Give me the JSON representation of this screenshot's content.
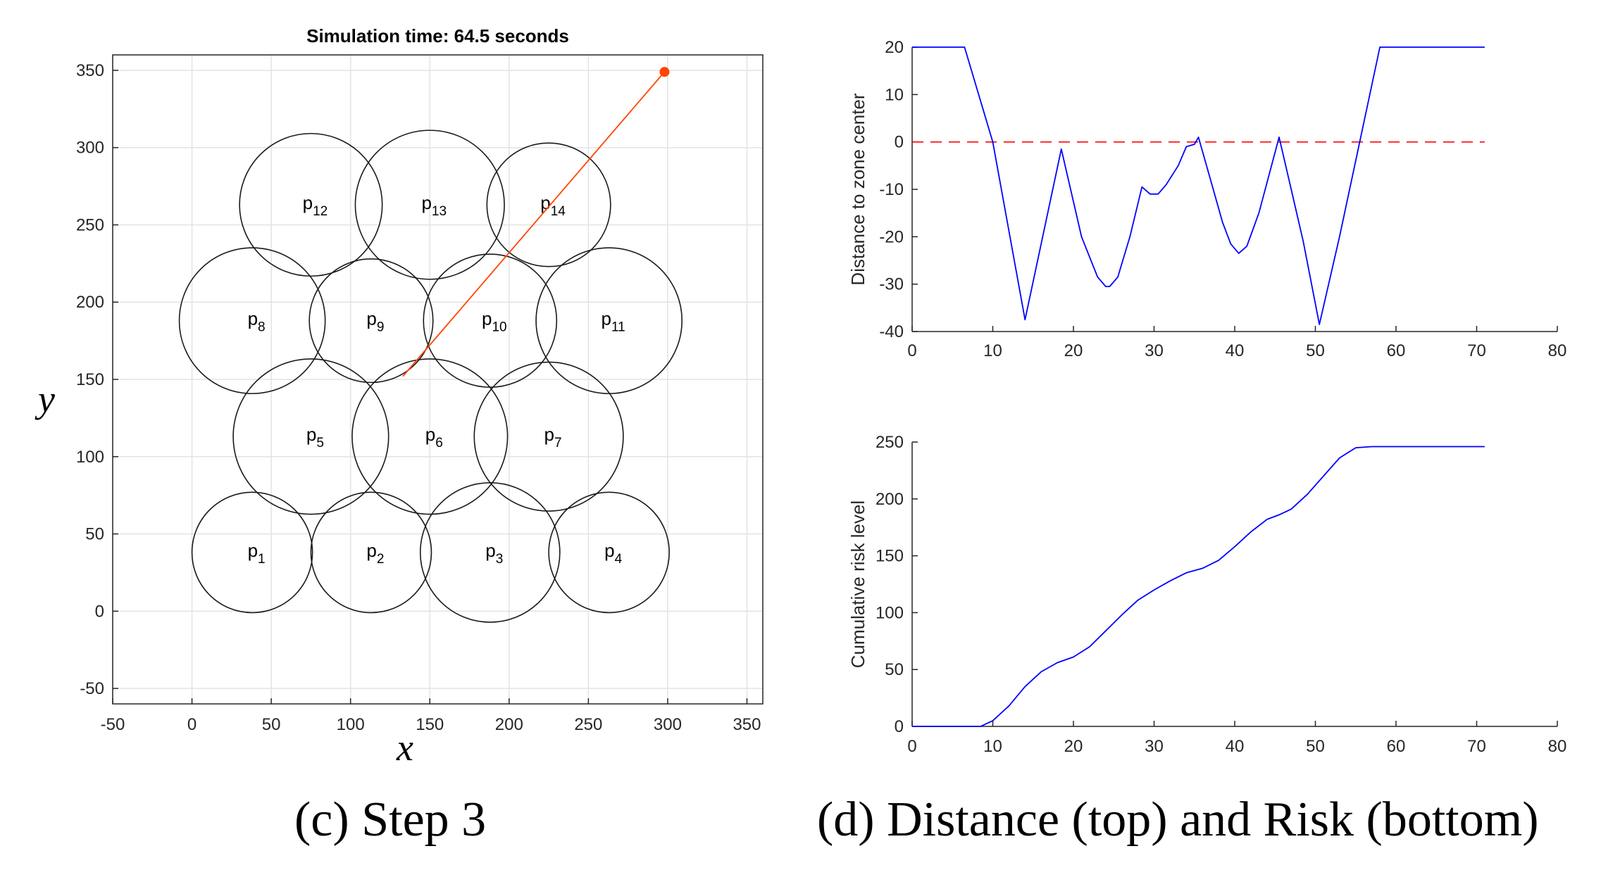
{
  "chart_data": [
    {
      "id": "left",
      "type": "scatter",
      "title": "Simulation time: 64.5 seconds",
      "xlabel": "x",
      "ylabel": "y",
      "xlim": [
        -50,
        360
      ],
      "ylim": [
        -60,
        360
      ],
      "xticks": [
        -50,
        0,
        50,
        100,
        150,
        200,
        250,
        300,
        350
      ],
      "yticks": [
        -50,
        0,
        50,
        100,
        150,
        200,
        250,
        300,
        350
      ],
      "grid": true,
      "caption": "(c) Step 3",
      "circles": [
        {
          "label": "p",
          "sub": "1",
          "cx": 38,
          "cy": 38,
          "r": 38
        },
        {
          "label": "p",
          "sub": "2",
          "cx": 113,
          "cy": 38,
          "r": 38
        },
        {
          "label": "p",
          "sub": "3",
          "cx": 188,
          "cy": 38,
          "r": 44
        },
        {
          "label": "p",
          "sub": "4",
          "cx": 263,
          "cy": 38,
          "r": 38
        },
        {
          "label": "p",
          "sub": "5",
          "cx": 75,
          "cy": 113,
          "r": 49
        },
        {
          "label": "p",
          "sub": "6",
          "cx": 150,
          "cy": 113,
          "r": 49
        },
        {
          "label": "p",
          "sub": "7",
          "cx": 225,
          "cy": 113,
          "r": 47
        },
        {
          "label": "p",
          "sub": "8",
          "cx": 38,
          "cy": 188,
          "r": 46
        },
        {
          "label": "p",
          "sub": "9",
          "cx": 113,
          "cy": 188,
          "r": 39
        },
        {
          "label": "p",
          "sub": "10",
          "cx": 188,
          "cy": 188,
          "r": 42
        },
        {
          "label": "p",
          "sub": "11",
          "cx": 263,
          "cy": 188,
          "r": 46
        },
        {
          "label": "p",
          "sub": "12",
          "cx": 75,
          "cy": 263,
          "r": 45
        },
        {
          "label": "p",
          "sub": "13",
          "cx": 150,
          "cy": 263,
          "r": 47
        },
        {
          "label": "p",
          "sub": "14",
          "cx": 225,
          "cy": 263,
          "r": 39
        }
      ],
      "path": {
        "x": [
          133,
          298
        ],
        "y": [
          152,
          349
        ],
        "color": "#ff4500"
      },
      "marker": {
        "x": 298,
        "y": 349,
        "color": "#ff4500"
      }
    },
    {
      "id": "top",
      "type": "line",
      "ylabel": "Distance to zone center",
      "xlim": [
        0,
        80
      ],
      "ylim": [
        -40,
        20
      ],
      "xticks": [
        0,
        10,
        20,
        30,
        40,
        50,
        60,
        70,
        80
      ],
      "yticks": [
        -40,
        -30,
        -20,
        -10,
        0,
        10,
        20
      ],
      "reference_line": {
        "y": 0,
        "color": "#ff0000",
        "style": "dashed"
      },
      "series": [
        {
          "color": "#0000ff",
          "x": [
            0,
            6.5,
            10,
            14,
            18.5,
            21,
            23,
            24,
            24.5,
            25.5,
            27,
            28.5,
            29.5,
            30.5,
            31.5,
            33,
            34,
            35,
            35.5,
            37,
            38.5,
            39.5,
            40.5,
            41.5,
            43,
            45.5,
            47,
            48.5,
            50.5,
            53,
            58,
            71
          ],
          "y": [
            20,
            20,
            0,
            -37.5,
            -1.5,
            -20,
            -28.5,
            -30.5,
            -30.5,
            -28.5,
            -20,
            -9.5,
            -11,
            -11,
            -9,
            -5,
            -1,
            -0.5,
            1,
            -8,
            -17,
            -21.5,
            -23.5,
            -22,
            -15,
            1,
            -10,
            -21,
            -38.5,
            -20,
            20,
            20
          ]
        }
      ]
    },
    {
      "id": "bottom",
      "type": "line",
      "ylabel": "Cumulative risk level",
      "xlim": [
        0,
        80
      ],
      "ylim": [
        0,
        250
      ],
      "xticks": [
        0,
        10,
        20,
        30,
        40,
        50,
        60,
        70,
        80
      ],
      "yticks": [
        0,
        50,
        100,
        150,
        200,
        250
      ],
      "series": [
        {
          "color": "#0000ff",
          "x": [
            0,
            8.5,
            10,
            12,
            14,
            16,
            18,
            20,
            22,
            24,
            26,
            28,
            30,
            32,
            34,
            36,
            38,
            40,
            42,
            44,
            45.5,
            47,
            49,
            51,
            53,
            55,
            57,
            60,
            65,
            71
          ],
          "y": [
            0,
            0,
            5,
            18,
            35,
            48,
            56,
            61,
            70,
            84,
            98,
            111,
            120,
            128,
            135,
            139,
            146,
            158,
            171,
            182,
            186,
            191,
            204,
            220,
            236,
            245,
            246,
            246,
            246,
            246
          ]
        }
      ],
      "caption": "(d) Distance (top) and Risk (bottom)"
    }
  ]
}
